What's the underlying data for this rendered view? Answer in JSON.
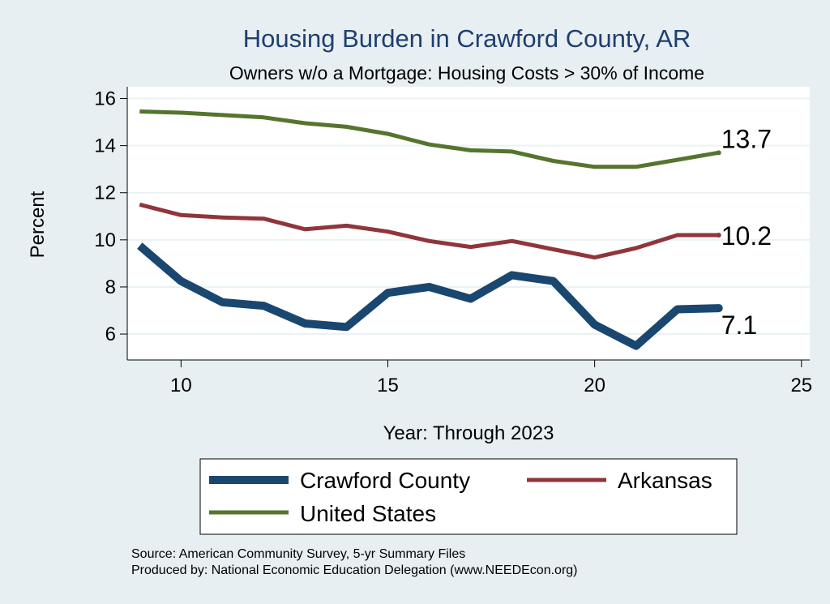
{
  "chart_data": {
    "type": "line",
    "title": "Housing Burden in Crawford County, AR",
    "subtitle": "Owners w/o a Mortgage: Housing Costs > 30% of Income",
    "xlabel": "Year: Through 2023",
    "ylabel": "Percent",
    "xlim": [
      8.7,
      25.2
    ],
    "ylim": [
      4.9,
      16.5
    ],
    "xticks": [
      10,
      15,
      20,
      25
    ],
    "yticks": [
      6,
      8,
      10,
      12,
      14,
      16
    ],
    "grid": true,
    "legend_position": "bottom",
    "x": [
      9,
      10,
      11,
      12,
      13,
      14,
      15,
      16,
      17,
      18,
      19,
      20,
      21,
      22,
      23
    ],
    "series": [
      {
        "name": "Crawford County",
        "color": "#1a476f",
        "values": [
          9.75,
          8.25,
          7.35,
          7.2,
          6.45,
          6.3,
          7.75,
          8.0,
          7.5,
          8.5,
          8.25,
          6.4,
          5.5,
          7.05,
          7.1
        ],
        "end_label": "7.1"
      },
      {
        "name": "Arkansas",
        "color": "#90353b",
        "values": [
          11.5,
          11.05,
          10.95,
          10.9,
          10.45,
          10.6,
          10.35,
          9.95,
          9.7,
          9.95,
          9.6,
          9.25,
          9.65,
          10.2,
          10.2
        ],
        "end_label": "10.2"
      },
      {
        "name": "United States",
        "color": "#55752f",
        "values": [
          15.45,
          15.4,
          15.3,
          15.2,
          14.95,
          14.8,
          14.5,
          14.05,
          13.8,
          13.75,
          13.35,
          13.1,
          13.1,
          13.4,
          13.7
        ],
        "end_label": "13.7"
      }
    ]
  },
  "source": {
    "line1": "Source: American Community Survey, 5-yr Summary Files",
    "line2": "Produced by: National Economic Education Delegation (www.NEEDEcon.org)"
  }
}
